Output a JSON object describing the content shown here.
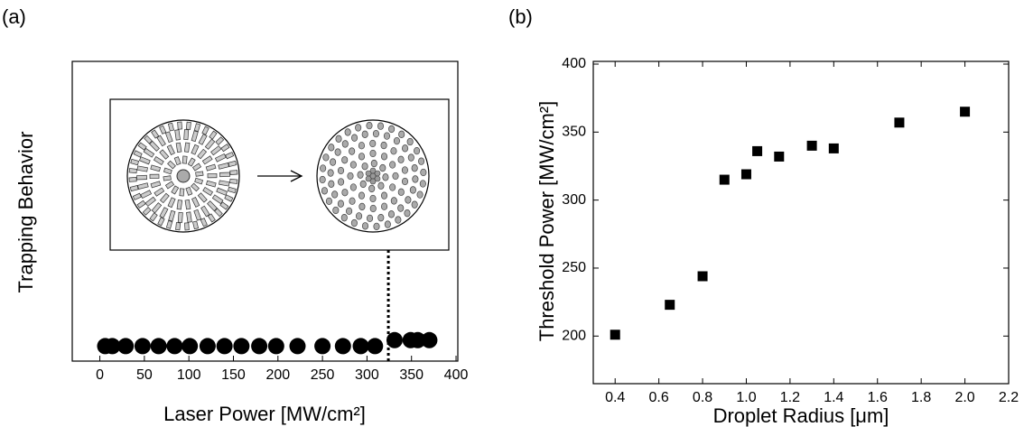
{
  "chart_data": [
    {
      "type": "scatter",
      "panel_label": "(a)",
      "x_label": "Laser Power [MW/cm²]",
      "y_label": "Trapping Behavior",
      "x": [
        6,
        14,
        29,
        48,
        66,
        84,
        101,
        121,
        140,
        159,
        179,
        198,
        222,
        250,
        273,
        293,
        309,
        331,
        349,
        357,
        370
      ],
      "values": [
        0.05,
        0.05,
        0.05,
        0.05,
        0.05,
        0.05,
        0.05,
        0.05,
        0.05,
        0.05,
        0.05,
        0.05,
        0.05,
        0.05,
        0.05,
        0.05,
        0.05,
        0.07,
        0.07,
        0.07,
        0.07
      ],
      "marker": "circle",
      "color": "#000000",
      "vline": 324,
      "xlim": [
        -31,
        402
      ],
      "xticks": [
        0,
        50,
        100,
        150,
        200,
        250,
        300,
        350,
        400
      ],
      "ylim": [
        0,
        1
      ]
    },
    {
      "type": "scatter",
      "panel_label": "(b)",
      "x_label": "Droplet Radius [μm]",
      "y_label": "Threshold Power [MW/cm²]",
      "x": [
        0.4,
        0.65,
        0.8,
        0.9,
        1.0,
        1.05,
        1.15,
        1.3,
        1.4,
        1.7,
        2.0
      ],
      "values": [
        201,
        223,
        244,
        315,
        319,
        336,
        332,
        340,
        338,
        357,
        365
      ],
      "marker": "square",
      "color": "#000000",
      "xlim": [
        0.3,
        2.2
      ],
      "xticks": [
        0.4,
        0.6,
        0.8,
        {
          "value": 1.0,
          "label": "1.0"
        },
        1.2,
        1.4,
        1.6,
        1.8,
        {
          "value": 2.0,
          "label": "2.0"
        },
        2.2
      ],
      "ylim": [
        165,
        402
      ],
      "yticks": [
        200,
        250,
        300,
        350,
        400
      ]
    }
  ]
}
